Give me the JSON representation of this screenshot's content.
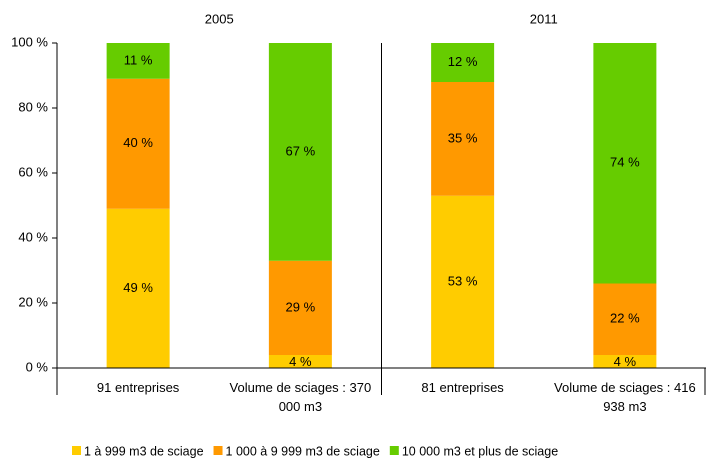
{
  "chart_data": {
    "type": "stacked_bar",
    "groups": [
      "2005",
      "2011"
    ],
    "categories": [
      "91 entreprises",
      "Volume de sciages : 370 000 m3",
      "81 entreprises",
      "Volume de sciages : 416 938 m3"
    ],
    "series": [
      {
        "name": "1 à 999 m3 de sciage",
        "color": "#ffcc00",
        "values": [
          49,
          4,
          53,
          4
        ],
        "value_labels": [
          "49 %",
          "4 %",
          "53 %",
          "4 %"
        ]
      },
      {
        "name": "1 000 à 9 999 m3 de sciage",
        "color": "#ff9900",
        "values": [
          40,
          29,
          35,
          22
        ],
        "value_labels": [
          "40 %",
          "29 %",
          "35 %",
          "22 %"
        ]
      },
      {
        "name": "10 000 m3 et plus de sciage",
        "color": "#66cc00",
        "values": [
          11,
          67,
          12,
          74
        ],
        "value_labels": [
          "11 %",
          "67 %",
          "12 %",
          "74 %"
        ]
      }
    ],
    "ylim": [
      0,
      100
    ],
    "yticks": [
      {
        "value": 0,
        "label": "0 %"
      },
      {
        "value": 20,
        "label": "20 %"
      },
      {
        "value": 40,
        "label": "40 %"
      },
      {
        "value": 60,
        "label": "60 %"
      },
      {
        "value": 80,
        "label": "80 %"
      },
      {
        "value": 100,
        "label": "100 %"
      }
    ],
    "legend": "bottom"
  }
}
